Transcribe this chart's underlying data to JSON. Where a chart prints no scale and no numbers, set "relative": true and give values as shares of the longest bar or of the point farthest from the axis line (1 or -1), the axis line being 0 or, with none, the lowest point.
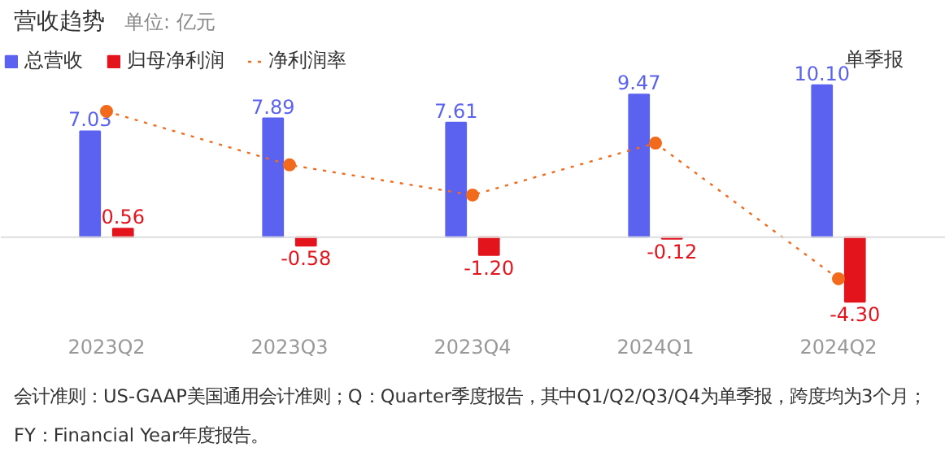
{
  "chart_data": [
    {
      "type": "bar",
      "title": "营收趋势",
      "subtitle": "单位: 亿元",
      "categories": [
        "2023Q2",
        "2023Q3",
        "2023Q4",
        "2024Q1",
        "2024Q2"
      ],
      "series": [
        {
          "name": "总营收",
          "color": "#5b62f0",
          "values": [
            7.03,
            7.89,
            7.61,
            9.47,
            10.1
          ],
          "value_labels": [
            "7.03",
            "7.89",
            "7.61",
            "9.47",
            "10.10"
          ]
        },
        {
          "name": "归母净利润",
          "color": "#e4141c",
          "values": [
            0.56,
            -0.58,
            -1.2,
            -0.12,
            -4.3
          ],
          "value_labels": [
            "0.56",
            "-0.58",
            "-1.20",
            "-0.12",
            "-4.30"
          ]
        }
      ],
      "ylim": [
        -15.2,
        15.7
      ],
      "legend": "top left",
      "ref_lines": [
        {
          "axis": "y",
          "value": 0,
          "color": "#dddddd"
        }
      ],
      "annotations": [
        "单季报",
        "会计准则：US-GAAP美国通用会计准则；Q：Quarter季度报告，其中Q1/Q2/Q3/Q4为单季报，跨度均为3个月；FY：Financial Year年度报告。"
      ]
    },
    {
      "type": "line",
      "relative": true,
      "categories": [
        "2023Q2",
        "2023Q3",
        "2023Q4",
        "2024Q1",
        "2024Q2"
      ],
      "tick_labels": false,
      "series": [
        {
          "name": "净利润率",
          "color": "#f26a1b",
          "values": [
            1.0,
            0.68,
            0.5,
            0.81,
            0.0
          ]
        }
      ],
      "marker": "circle",
      "line_style": "dotted",
      "legend": "top left"
    }
  ]
}
